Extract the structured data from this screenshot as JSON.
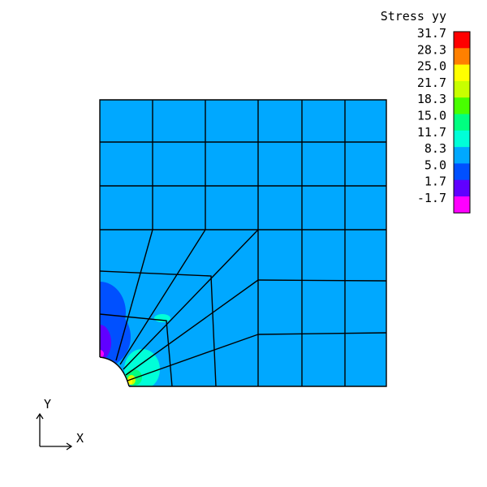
{
  "legend": {
    "title": "Stress yy",
    "values": [
      "31.7",
      "28.3",
      "25.0",
      "21.7",
      "18.3",
      "15.0",
      "11.7",
      "8.3",
      "5.0",
      "1.7",
      "-1.7"
    ],
    "colors": [
      "#ff0000",
      "#ff8000",
      "#ffff00",
      "#c8ff00",
      "#48ff00",
      "#00ff80",
      "#00ffd8",
      "#00a8ff",
      "#0050ff",
      "#6000ff",
      "#ff00ff"
    ]
  },
  "axes": {
    "x_label": "X",
    "y_label": "Y"
  },
  "mesh": {
    "background_color": "#00a8ff",
    "line_color": "#000000"
  }
}
